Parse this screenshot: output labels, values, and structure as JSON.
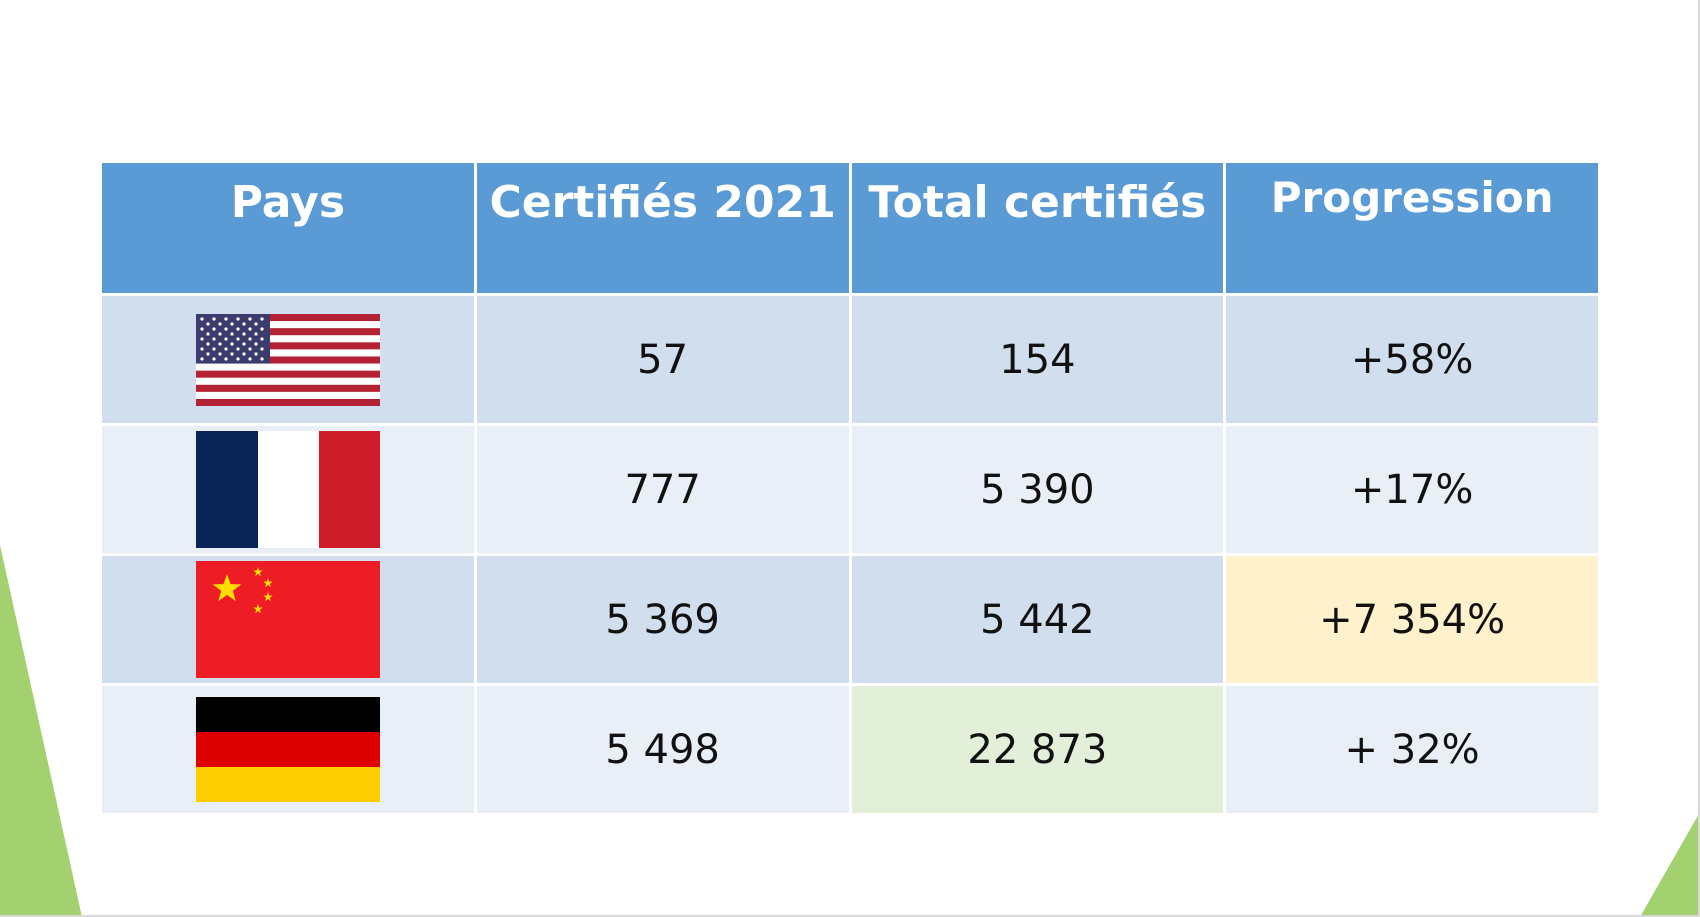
{
  "table": {
    "headers": [
      "Pays",
      "Certifiés 2021",
      "Total certifiés",
      "Progression"
    ],
    "rows": [
      {
        "country_flag": "us-flag-icon",
        "certified_2021": "57",
        "total_certified": "154",
        "progression": "+58%"
      },
      {
        "country_flag": "france-flag-icon",
        "certified_2021": "777",
        "total_certified": "5 390",
        "progression": "+17%"
      },
      {
        "country_flag": "china-flag-icon",
        "certified_2021": "5 369",
        "total_certified": "5 442",
        "progression": "+7 354%"
      },
      {
        "country_flag": "germany-flag-icon",
        "certified_2021": "5 498",
        "total_certified": "22 873",
        "progression": "+ 32%"
      }
    ]
  },
  "colors": {
    "header_bg": "#5b9bd5",
    "row_odd_bg": "#d0deed",
    "row_even_bg": "#e9eff7",
    "highlight_yellow": "#fff1cc",
    "highlight_green": "#e2efd9",
    "decor_green": "#a3d16f"
  }
}
